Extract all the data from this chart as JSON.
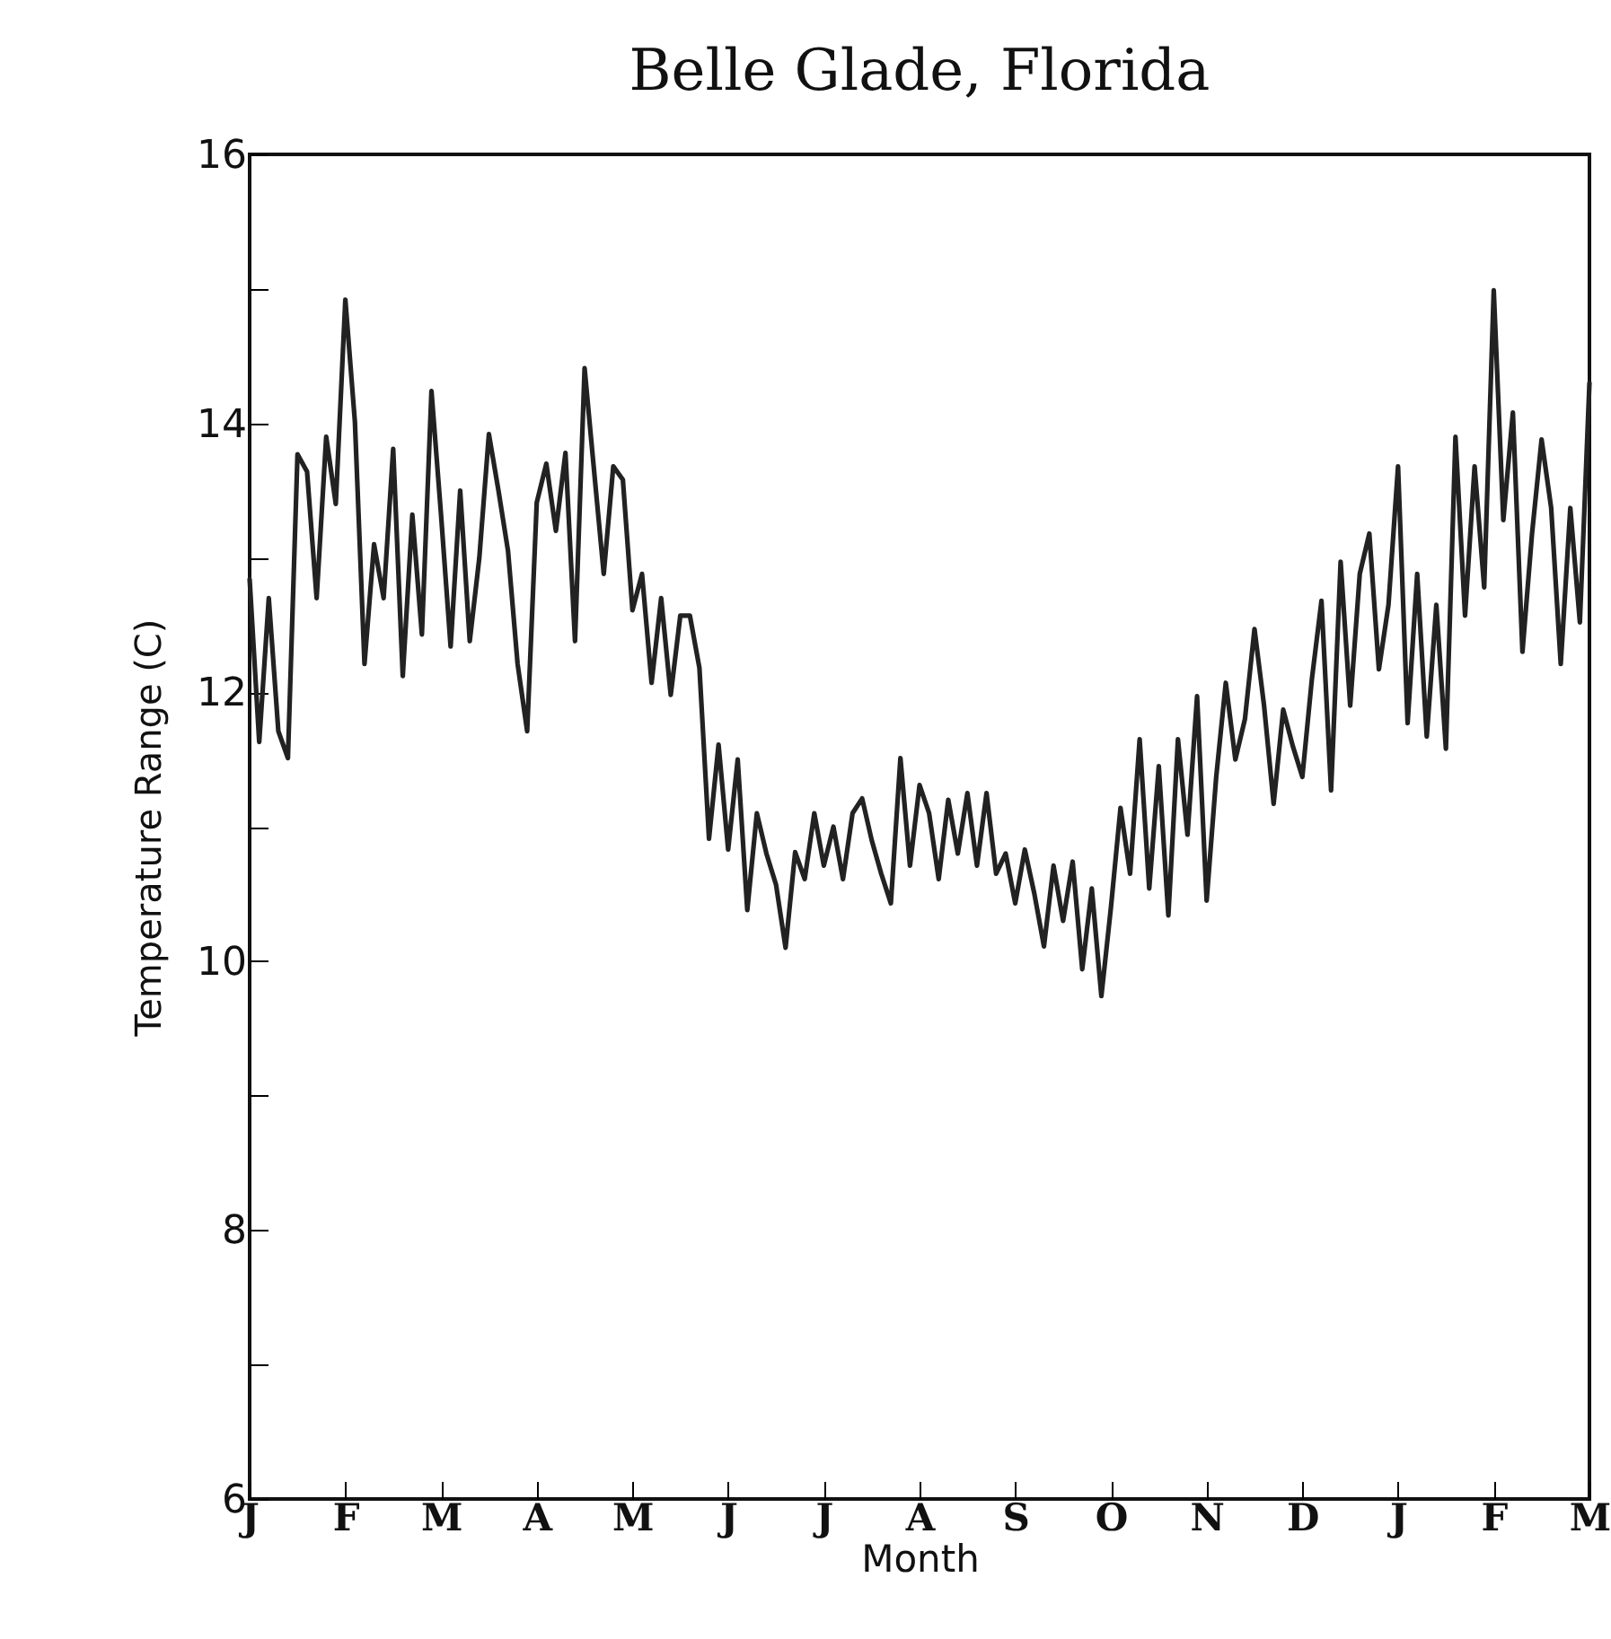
{
  "chart_data": {
    "type": "line",
    "title": "Belle Glade, Florida",
    "xlabel": "Month",
    "ylabel": "Temperature Range (C)",
    "categories": [
      "J",
      null,
      null,
      null,
      null,
      null,
      null,
      null,
      null,
      null,
      "F",
      null,
      null,
      null,
      null,
      null,
      null,
      null,
      null,
      null,
      "M",
      null,
      null,
      null,
      null,
      null,
      null,
      null,
      null,
      null,
      "A",
      null,
      null,
      null,
      null,
      null,
      null,
      null,
      null,
      null,
      "M",
      null,
      null,
      null,
      null,
      null,
      null,
      null,
      null,
      null,
      "J",
      null,
      null,
      null,
      null,
      null,
      null,
      null,
      null,
      null,
      "J",
      null,
      null,
      null,
      null,
      null,
      null,
      null,
      null,
      null,
      "A",
      null,
      null,
      null,
      null,
      null,
      null,
      null,
      null,
      null,
      "S",
      null,
      null,
      null,
      null,
      null,
      null,
      null,
      null,
      null,
      "O",
      null,
      null,
      null,
      null,
      null,
      null,
      null,
      null,
      null,
      "N",
      null,
      null,
      null,
      null,
      null,
      null,
      null,
      null,
      null,
      "D",
      null,
      null,
      null,
      null,
      null,
      null,
      null,
      null,
      null,
      "J",
      null,
      null,
      null,
      null,
      null,
      null,
      null,
      null,
      null,
      "F",
      null,
      null,
      null,
      null,
      null,
      null,
      null,
      null,
      null,
      "M"
    ],
    "series": [
      {
        "color": "#222222",
        "values": [
          12.84,
          11.63,
          12.7,
          11.71,
          11.51,
          13.77,
          13.64,
          12.7,
          13.9,
          13.4,
          14.92,
          14.01,
          12.21,
          13.1,
          12.7,
          13.81,
          12.12,
          13.32,
          12.43,
          14.24,
          13.32,
          12.34,
          13.5,
          12.38,
          13.0,
          13.92,
          13.5,
          13.05,
          12.21,
          11.71,
          13.41,
          13.7,
          13.2,
          13.78,
          12.38,
          14.41,
          13.64,
          12.88,
          13.68,
          13.58,
          12.61,
          12.88,
          12.07,
          12.7,
          11.98,
          12.57,
          12.57,
          12.18,
          10.91,
          11.61,
          10.83,
          11.5,
          10.38,
          11.1,
          10.8,
          10.57,
          10.1,
          10.81,
          10.61,
          11.1,
          10.71,
          11.0,
          10.61,
          11.1,
          11.21,
          10.9,
          10.65,
          10.43,
          11.51,
          10.71,
          11.31,
          11.1,
          10.61,
          11.2,
          10.8,
          11.25,
          10.71,
          11.25,
          10.65,
          10.8,
          10.43,
          10.83,
          10.5,
          10.11,
          10.71,
          10.3,
          10.74,
          9.94,
          10.54,
          9.74,
          10.4,
          11.14,
          10.65,
          11.65,
          10.54,
          11.45,
          10.34,
          11.65,
          10.94,
          11.97,
          10.45,
          11.37,
          12.07,
          11.5,
          11.8,
          12.47,
          11.9,
          11.17,
          11.87,
          11.6,
          11.37,
          12.1,
          12.68,
          11.27,
          12.97,
          11.9,
          12.88,
          13.18,
          12.17,
          12.65,
          13.68,
          11.77,
          12.88,
          11.67,
          12.65,
          11.58,
          13.9,
          12.57,
          13.68,
          12.78,
          14.99,
          13.28,
          14.08,
          12.3,
          13.18,
          13.88,
          13.37,
          12.21,
          13.37,
          12.52,
          14.3
        ]
      }
    ],
    "ylim": [
      6,
      16
    ],
    "yticks": [
      6,
      {
        "value": 7,
        "label": null
      },
      8,
      {
        "value": 9,
        "label": null
      },
      10,
      {
        "value": 11,
        "label": null
      },
      12,
      {
        "value": 13,
        "label": null
      },
      14,
      {
        "value": 15,
        "label": null
      },
      16
    ],
    "grid": false,
    "marker": "none",
    "line_style": "solid"
  }
}
